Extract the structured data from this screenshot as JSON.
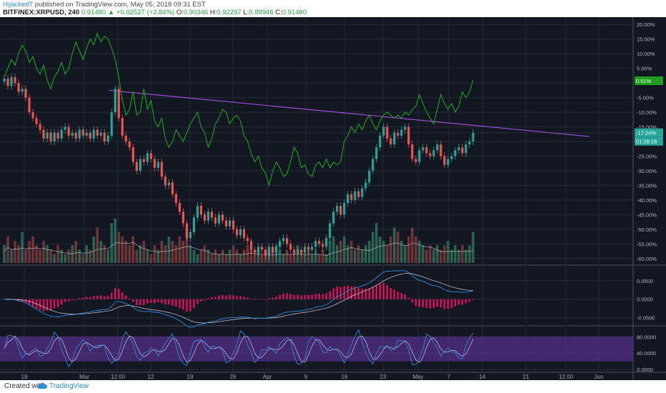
{
  "header": {
    "author": "HijackedT",
    "published_text": "published on TradingView.com, May 05, 2018 09:31 EST",
    "symbol": "BITFINEX:XRPUSD, 240",
    "last": "0.91480",
    "change": "+0.02527 (+2.84%)",
    "o_label": "O:",
    "o_value": "0.90346",
    "h_label": "H:",
    "h_value": "0.92297",
    "l_label": "L:",
    "l_value": "0.89946",
    "c_label": "C:",
    "c_value": "0.91480"
  },
  "footer": {
    "created_with": "Created with",
    "brand": "TradingView"
  },
  "colors": {
    "background": "#131722",
    "grid": "#262b3a",
    "up": "#26a69a",
    "down": "#ef5350",
    "compare": "#1fa31f",
    "trendline": "#9b4dd6",
    "macd": "#2f8ad8",
    "signal": "#ffffff",
    "hist": "#e0105f",
    "stoch_k": "#2f8ad8",
    "stoch_d": "#ffffff",
    "stoch_band": "#4b2c7a"
  },
  "chart_data": [
    {
      "type": "candlestick",
      "name": "price",
      "x_ticks": [
        "19",
        "Mar",
        "12:00",
        "12",
        "19",
        "26",
        "Apr",
        "9",
        "16",
        "23",
        "May",
        "7",
        "14",
        "21",
        "12:00",
        "Jun"
      ],
      "y_ticks": [
        "20.00%",
        "15.00%",
        "10.00%",
        "5.00%",
        "0.00%",
        "-5.00%",
        "-10.00%",
        "-15.00%",
        "-20.00%",
        "-25.00%",
        "-30.00%",
        "-35.00%",
        "-40.00%",
        "-45.00%",
        "-50.00%",
        "-55.00%",
        "-60.00%"
      ],
      "ylim": [
        -62,
        22
      ],
      "price_close_pct": [
        1.5,
        -1,
        2,
        0,
        -3,
        -2,
        -5,
        -10,
        -12,
        -14,
        -16,
        -19,
        -17,
        -20,
        -17,
        -19,
        -16,
        -15,
        -18,
        -17,
        -19,
        -16,
        -18,
        -17,
        -19,
        -16,
        -18,
        -17,
        -20,
        -18,
        -10,
        -2,
        -12,
        -18,
        -20,
        -22,
        -27,
        -30,
        -26,
        -27,
        -24,
        -26,
        -29,
        -27,
        -32,
        -35,
        -34,
        -38,
        -41,
        -44,
        -48,
        -53,
        -51,
        -46,
        -42,
        -45,
        -47,
        -44,
        -46,
        -48,
        -45,
        -47,
        -49,
        -47,
        -50,
        -52,
        -50,
        -53,
        -54,
        -57,
        -58,
        -56,
        -57,
        -59,
        -56,
        -58,
        -56,
        -54,
        -53,
        -55,
        -57,
        -58,
        -57,
        -58,
        -56,
        -57,
        -56,
        -54,
        -55,
        -56,
        -53,
        -48,
        -44,
        -42,
        -45,
        -41,
        -38,
        -40,
        -37,
        -39,
        -36,
        -34,
        -30,
        -26,
        -22,
        -18,
        -15,
        -19,
        -21,
        -17,
        -18,
        -16,
        -15,
        -21,
        -26,
        -27,
        -23,
        -22,
        -24,
        -25,
        -23,
        -21,
        -25,
        -28,
        -26,
        -25,
        -23,
        -22,
        -24,
        -21,
        -20,
        -17
      ],
      "compare_pct": [
        2,
        5,
        8,
        6,
        10,
        13,
        11,
        7,
        9,
        5,
        3,
        6,
        1,
        -2,
        2,
        4,
        7,
        3,
        5,
        10,
        14,
        11,
        8,
        12,
        15,
        13,
        17,
        14,
        16,
        15,
        12,
        8,
        2,
        -6,
        -11,
        -9,
        -3,
        -11,
        -10,
        -2,
        -9,
        -6,
        -13,
        -15,
        -12,
        -19,
        -22,
        -20,
        -16,
        -18,
        -20,
        -17,
        -14,
        -12,
        -10,
        -15,
        -17,
        -22,
        -19,
        -14,
        -12,
        -9,
        -10,
        -14,
        -12,
        -11,
        -13,
        -18,
        -20,
        -24,
        -27,
        -25,
        -29,
        -31,
        -35,
        -30,
        -27,
        -29,
        -32,
        -31,
        -27,
        -22,
        -24,
        -29,
        -28,
        -31,
        -32,
        -28,
        -27,
        -29,
        -26,
        -29,
        -27,
        -28,
        -27,
        -20,
        -18,
        -15,
        -17,
        -14,
        -16,
        -13,
        -11,
        -14,
        -16,
        -13,
        -11,
        -10,
        -11,
        -12,
        -11,
        -12,
        -10,
        -11,
        -9,
        -8,
        -4,
        -7,
        -10,
        -12,
        -14,
        -9,
        -4,
        -7,
        -9,
        -7,
        -10,
        -8,
        -3,
        -5,
        -3,
        1
      ],
      "volume_rel": [
        0.4,
        0.6,
        0.3,
        0.5,
        0.4,
        0.7,
        0.3,
        0.5,
        0.6,
        0.4,
        0.3,
        0.5,
        0.4,
        0.3,
        0.2,
        0.4,
        0.3,
        0.2,
        0.3,
        0.4,
        0.5,
        0.3,
        0.2,
        0.4,
        0.3,
        0.6,
        0.8,
        0.5,
        0.4,
        0.3,
        0.9,
        1.0,
        0.7,
        0.6,
        0.5,
        0.4,
        0.6,
        0.3,
        0.4,
        0.5,
        0.3,
        0.2,
        0.4,
        0.3,
        0.5,
        0.4,
        0.6,
        0.5,
        0.4,
        0.6,
        0.5,
        0.7,
        0.4,
        0.3,
        0.2,
        0.3,
        0.4,
        0.3,
        0.2,
        0.3,
        0.2,
        0.3,
        0.2,
        0.3,
        0.4,
        0.3,
        0.2,
        0.3,
        0.4,
        0.3,
        0.2,
        0.3,
        0.2,
        0.3,
        0.2,
        0.3,
        0.4,
        0.3,
        0.2,
        0.3,
        0.2,
        0.3,
        0.4,
        0.3,
        0.2,
        0.3,
        0.2,
        0.3,
        0.2,
        0.3,
        0.2,
        0.5,
        0.6,
        0.4,
        0.5,
        0.6,
        0.4,
        0.5,
        0.3,
        0.4,
        0.3,
        0.4,
        0.5,
        0.7,
        0.9,
        0.6,
        0.5,
        0.4,
        0.6,
        0.8,
        0.7,
        0.5,
        0.4,
        0.6,
        0.8,
        0.6,
        0.5,
        0.4,
        0.3,
        0.4,
        0.3,
        0.4,
        0.3,
        0.4,
        0.5,
        0.3,
        0.4,
        0.3,
        0.4,
        0.3,
        0.4,
        0.7
      ],
      "trendline_pct": [
        [
          -2.5,
          -18.3
        ]
      ],
      "labels": {
        "compare_value": "0.51%",
        "price_value": "-17.24%",
        "countdown": "01:28:18"
      }
    },
    {
      "type": "line",
      "name": "MACD",
      "y_ticks": [
        "0.0500",
        "0.0000",
        "-0.0500"
      ],
      "ylim": [
        -0.07,
        0.09
      ]
    },
    {
      "type": "line",
      "name": "Stoch RSI",
      "y_ticks": [
        "80.0000",
        "40.0000",
        "0.0000"
      ],
      "ylim": [
        -5,
        105
      ],
      "band": [
        20,
        80
      ]
    }
  ]
}
